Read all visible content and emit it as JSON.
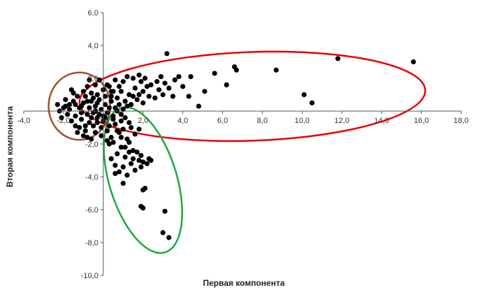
{
  "chart_data": {
    "type": "scatter",
    "xlabel": "Первая компонента",
    "ylabel": "Вторая компонента",
    "xlim": [
      -4,
      18
    ],
    "ylim": [
      -10,
      6
    ],
    "xticks": [
      -4,
      -2,
      0,
      2,
      4,
      6,
      8,
      10,
      12,
      14,
      16,
      18
    ],
    "yticks": [
      -10,
      -8,
      -6,
      -4,
      -2,
      0,
      2,
      4,
      6
    ],
    "xtick_labels": [
      "-4,0",
      "-2,0",
      "0,0",
      "2,0",
      "4,0",
      "6,0",
      "8,0",
      "10,0",
      "12,0",
      "14,0",
      "16,0",
      "18,0"
    ],
    "ytick_labels": [
      "-10,0",
      "-8,0",
      "-6,0",
      "-4,0",
      "-2,0",
      "0,0",
      "2,0",
      "4,0",
      "6,0"
    ],
    "grid": false,
    "marker_color": "#000000",
    "points": [
      [
        3.2,
        3.5
      ],
      [
        11.8,
        3.2
      ],
      [
        15.6,
        3.0
      ],
      [
        6.6,
        2.7
      ],
      [
        6.7,
        2.5
      ],
      [
        8.7,
        2.5
      ],
      [
        5.6,
        2.3
      ],
      [
        3.8,
        2.1
      ],
      [
        4.4,
        2.1
      ],
      [
        6.2,
        1.6
      ],
      [
        4.0,
        1.5
      ],
      [
        3.3,
        1.4
      ],
      [
        5.1,
        1.2
      ],
      [
        4.3,
        0.9
      ],
      [
        10.1,
        1.0
      ],
      [
        10.5,
        0.5
      ],
      [
        4.8,
        0.3
      ],
      [
        3.5,
        0.9
      ],
      [
        3.0,
        1.0
      ],
      [
        2.8,
        1.3
      ],
      [
        2.4,
        1.6
      ],
      [
        2.2,
        1.5
      ],
      [
        2.0,
        1.2
      ],
      [
        1.8,
        1.0
      ],
      [
        1.6,
        1.4
      ],
      [
        1.9,
        1.8
      ],
      [
        1.5,
        2.0
      ],
      [
        1.2,
        2.1
      ],
      [
        1.0,
        1.8
      ],
      [
        0.8,
        1.5
      ],
      [
        0.6,
        1.9
      ],
      [
        0.9,
        1.2
      ],
      [
        1.3,
        1.0
      ],
      [
        1.7,
        0.7
      ],
      [
        2.3,
        0.9
      ],
      [
        2.6,
        0.8
      ],
      [
        0.5,
        1.2
      ],
      [
        0.3,
        1.5
      ],
      [
        1.1,
        0.6
      ],
      [
        2.0,
        0.5
      ],
      [
        1.4,
        0.4
      ],
      [
        0.7,
        0.8
      ],
      [
        3.6,
        1.9
      ],
      [
        2.9,
        2.1
      ],
      [
        1.8,
        2.2
      ],
      [
        2.1,
        2.0
      ],
      [
        0.4,
        0.9
      ],
      [
        1.5,
        0.9
      ],
      [
        2.7,
        1.8
      ],
      [
        3.1,
        1.7
      ],
      [
        0.6,
        -0.8
      ],
      [
        0.8,
        -1.3
      ],
      [
        1.0,
        -1.1
      ],
      [
        1.2,
        -1.7
      ],
      [
        0.5,
        -1.9
      ],
      [
        0.9,
        -2.2
      ],
      [
        1.3,
        -2.5
      ],
      [
        1.1,
        -2.8
      ],
      [
        0.7,
        -2.6
      ],
      [
        1.5,
        -2.9
      ],
      [
        1.8,
        -3.0
      ],
      [
        1.4,
        -3.2
      ],
      [
        1.9,
        -3.4
      ],
      [
        2.2,
        -3.2
      ],
      [
        1.6,
        -3.6
      ],
      [
        1.0,
        -3.4
      ],
      [
        0.8,
        -3.7
      ],
      [
        0.6,
        -3.3
      ],
      [
        1.2,
        -3.9
      ],
      [
        1.7,
        -2.5
      ],
      [
        1.9,
        -2.7
      ],
      [
        2.0,
        -3.1
      ],
      [
        2.4,
        -3.0
      ],
      [
        1.3,
        -1.9
      ],
      [
        1.0,
        -4.4
      ],
      [
        0.6,
        -3.8
      ],
      [
        0.4,
        -2.9
      ],
      [
        0.3,
        -2.0
      ],
      [
        0.9,
        -1.6
      ],
      [
        1.6,
        -1.4
      ],
      [
        2.1,
        -4.7
      ],
      [
        2.0,
        -4.8
      ],
      [
        1.9,
        -5.8
      ],
      [
        2.0,
        -5.9
      ],
      [
        3.1,
        -6.1
      ],
      [
        3.0,
        -7.4
      ],
      [
        3.3,
        -7.7
      ],
      [
        1.4,
        -1.0
      ],
      [
        0.7,
        -1.2
      ],
      [
        2.3,
        -2.9
      ],
      [
        1.5,
        -2.4
      ],
      [
        1.1,
        -2.2
      ],
      [
        0.2,
        -1.2
      ],
      [
        0.4,
        -1.6
      ],
      [
        1.3,
        -0.7
      ],
      [
        0.5,
        -0.5
      ],
      [
        0.9,
        -0.6
      ],
      [
        1.8,
        -1.1
      ],
      [
        -1.0,
        0.5
      ],
      [
        -1.2,
        0.2
      ],
      [
        -0.8,
        -0.2
      ],
      [
        -0.6,
        0.6
      ],
      [
        -0.4,
        0.3
      ],
      [
        -0.2,
        0.7
      ],
      [
        -0.9,
        0.9
      ],
      [
        -1.5,
        0.6
      ],
      [
        -1.7,
        0.1
      ],
      [
        -1.9,
        0.3
      ],
      [
        -1.4,
        -0.3
      ],
      [
        -1.1,
        -0.5
      ],
      [
        -0.7,
        -0.7
      ],
      [
        -0.5,
        -0.9
      ],
      [
        -0.3,
        -0.4
      ],
      [
        -0.1,
        0.1
      ],
      [
        0.1,
        0.4
      ],
      [
        0.2,
        -0.1
      ],
      [
        0.0,
        -0.6
      ],
      [
        -0.6,
        1.1
      ],
      [
        -1.0,
        1.2
      ],
      [
        -0.3,
        1.0
      ],
      [
        0.1,
        0.9
      ],
      [
        -1.3,
        0.9
      ],
      [
        -1.6,
        -0.6
      ],
      [
        -1.8,
        -0.2
      ],
      [
        -2.0,
        0.2
      ],
      [
        -2.2,
        0.0
      ],
      [
        -0.8,
        1.5
      ],
      [
        -0.4,
        1.6
      ],
      [
        0.0,
        1.3
      ],
      [
        0.2,
        1.6
      ],
      [
        -1.2,
        -1.0
      ],
      [
        -0.9,
        -1.2
      ],
      [
        -0.4,
        -1.3
      ],
      [
        -0.1,
        -1.0
      ],
      [
        0.3,
        0.2
      ],
      [
        -0.5,
        -0.1
      ],
      [
        -0.7,
        0.2
      ],
      [
        -1.4,
        0.4
      ],
      [
        -0.2,
        -0.2
      ],
      [
        0.4,
        0.6
      ],
      [
        -1.1,
        -0.1
      ],
      [
        -0.6,
        -0.4
      ],
      [
        -0.3,
        0.5
      ],
      [
        -0.8,
        0.6
      ],
      [
        -1.5,
        1.1
      ],
      [
        -1.9,
        0.7
      ],
      [
        -0.1,
        -1.5
      ],
      [
        0.2,
        -1.8
      ],
      [
        -0.6,
        -1.7
      ],
      [
        -1.0,
        -1.5
      ],
      [
        0.5,
        -0.3
      ],
      [
        0.6,
        0.2
      ],
      [
        -0.2,
        1.9
      ],
      [
        0.4,
        1.2
      ],
      [
        -1.3,
        -1.3
      ],
      [
        -0.7,
        1.9
      ],
      [
        0.0,
        -0.3
      ],
      [
        -0.4,
        0.0
      ],
      [
        -1.7,
        0.4
      ],
      [
        -0.9,
        -0.9
      ],
      [
        -0.3,
        -0.7
      ],
      [
        0.1,
        -0.4
      ],
      [
        -1.1,
        0.3
      ],
      [
        -0.5,
        0.8
      ],
      [
        0.3,
        -0.9
      ],
      [
        -0.8,
        -1.6
      ],
      [
        -1.4,
        -0.9
      ],
      [
        -2.1,
        -0.4
      ],
      [
        -2.3,
        0.4
      ],
      [
        -1.6,
        1.3
      ],
      [
        0.7,
        0.0
      ],
      [
        0.8,
        0.4
      ],
      [
        1.0,
        0.1
      ],
      [
        1.2,
        0.3
      ],
      [
        0.9,
        -0.2
      ],
      [
        1.1,
        -0.4
      ]
    ],
    "annotations": [
      {
        "shape": "ellipse",
        "color": "#a0522d"
      },
      {
        "shape": "ellipse",
        "color": "#e8000b"
      },
      {
        "shape": "ellipse",
        "color": "#1aaa3c"
      }
    ]
  }
}
